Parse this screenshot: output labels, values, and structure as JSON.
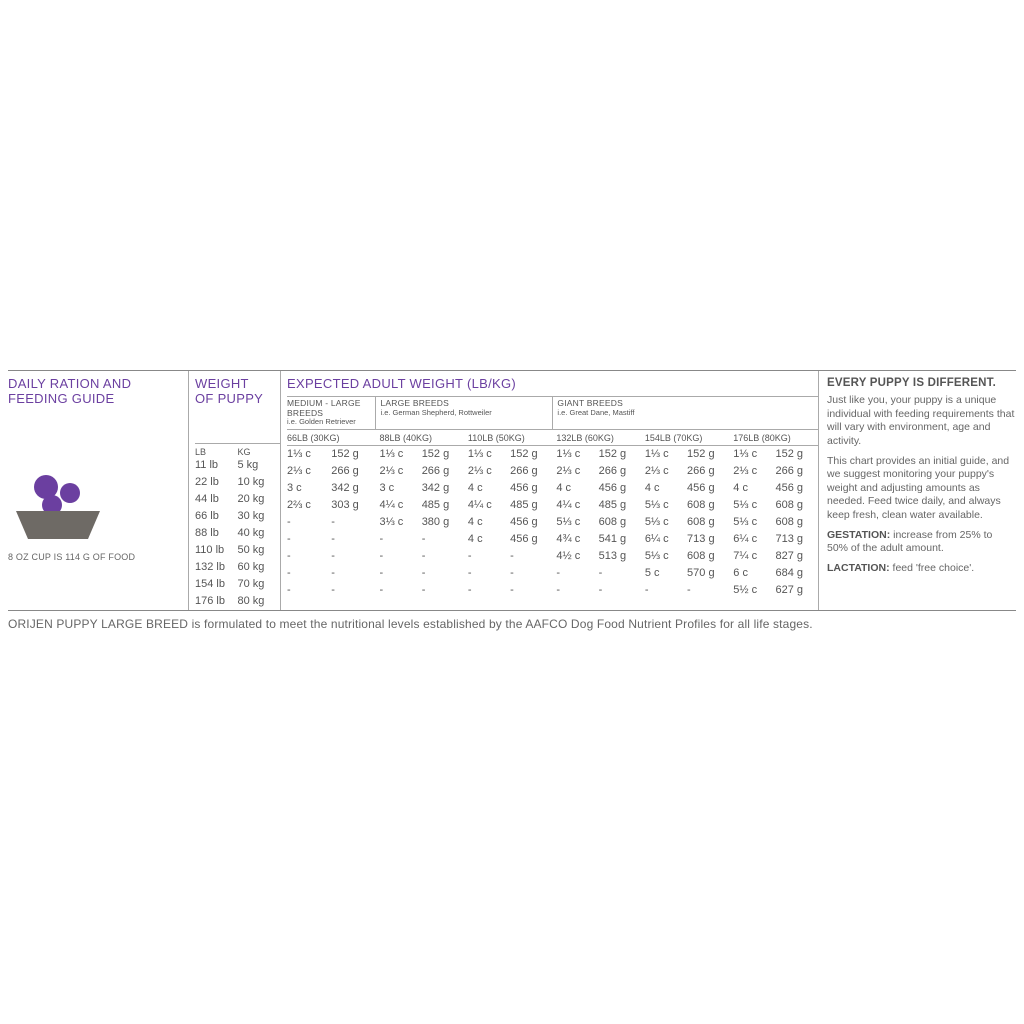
{
  "colors": {
    "purple": "#6b3fa0",
    "bowl": "#6e6a65",
    "text": "#666666",
    "rule": "#888888"
  },
  "left": {
    "title_l1": "DAILY RATION AND",
    "title_l2": "FEEDING GUIDE",
    "caption": "8 OZ CUP IS 114 G OF FOOD"
  },
  "weight": {
    "title_l1": "WEIGHT",
    "title_l2": "OF PUPPY",
    "h_lb": "LB",
    "h_kg": "KG",
    "rows": [
      {
        "lb": "11 lb",
        "kg": "5 kg"
      },
      {
        "lb": "22 lb",
        "kg": "10 kg"
      },
      {
        "lb": "44 lb",
        "kg": "20 kg"
      },
      {
        "lb": "66 lb",
        "kg": "30 kg"
      },
      {
        "lb": "88 lb",
        "kg": "40 kg"
      },
      {
        "lb": "110 lb",
        "kg": "50 kg"
      },
      {
        "lb": "132 lb",
        "kg": "60 kg"
      },
      {
        "lb": "154 lb",
        "kg": "70 kg"
      },
      {
        "lb": "176 lb",
        "kg": "80 kg"
      }
    ]
  },
  "table": {
    "title": "EXPECTED ADULT WEIGHT (LB/KG)",
    "breeds": [
      {
        "l1": "MEDIUM - LARGE BREEDS",
        "l2": "i.e. Golden Retriever"
      },
      {
        "l1": "LARGE BREEDS",
        "l2": "i.e. German Shepherd, Rottweiler"
      },
      {
        "l1": "GIANT BREEDS",
        "l2": "i.e. Great Dane, Mastiff"
      }
    ],
    "colheads": [
      "66LB (30KG)",
      "88LB (40KG)",
      "110LB (50KG)",
      "132LB (60KG)",
      "154LB (70KG)",
      "176LB (80KG)"
    ],
    "rows": [
      [
        [
          "1⅓ c",
          "152 g"
        ],
        [
          "1⅓ c",
          "152 g"
        ],
        [
          "1⅓ c",
          "152 g"
        ],
        [
          "1⅓ c",
          "152 g"
        ],
        [
          "1⅓ c",
          "152 g"
        ],
        [
          "1⅓ c",
          "152 g"
        ]
      ],
      [
        [
          "2⅓ c",
          "266 g"
        ],
        [
          "2⅓ c",
          "266 g"
        ],
        [
          "2⅓ c",
          "266 g"
        ],
        [
          "2⅓ c",
          "266 g"
        ],
        [
          "2⅓ c",
          "266 g"
        ],
        [
          "2⅓ c",
          "266 g"
        ]
      ],
      [
        [
          "3 c",
          "342 g"
        ],
        [
          "3 c",
          "342 g"
        ],
        [
          "4 c",
          "456 g"
        ],
        [
          "4 c",
          "456 g"
        ],
        [
          "4 c",
          "456 g"
        ],
        [
          "4 c",
          "456 g"
        ]
      ],
      [
        [
          "2⅔ c",
          "303 g"
        ],
        [
          "4¼ c",
          "485 g"
        ],
        [
          "4¼ c",
          "485 g"
        ],
        [
          "4¼ c",
          "485 g"
        ],
        [
          "5⅓ c",
          "608 g"
        ],
        [
          "5⅓ c",
          "608 g"
        ]
      ],
      [
        [
          "-",
          "-"
        ],
        [
          "3⅓ c",
          "380 g"
        ],
        [
          "4 c",
          "456 g"
        ],
        [
          "5⅓ c",
          "608 g"
        ],
        [
          "5⅓ c",
          "608 g"
        ],
        [
          "5⅓ c",
          "608 g"
        ]
      ],
      [
        [
          "-",
          "-"
        ],
        [
          "-",
          "-"
        ],
        [
          "4 c",
          "456 g"
        ],
        [
          "4¾ c",
          "541 g"
        ],
        [
          "6¼ c",
          "713 g"
        ],
        [
          "6¼ c",
          "713 g"
        ]
      ],
      [
        [
          "-",
          "-"
        ],
        [
          "-",
          "-"
        ],
        [
          "-",
          "-"
        ],
        [
          "4½ c",
          "513 g"
        ],
        [
          "5⅓ c",
          "608 g"
        ],
        [
          "7¼ c",
          "827 g"
        ]
      ],
      [
        [
          "-",
          "-"
        ],
        [
          "-",
          "-"
        ],
        [
          "-",
          "-"
        ],
        [
          "-",
          "-"
        ],
        [
          "5 c",
          "570 g"
        ],
        [
          "6 c",
          "684 g"
        ]
      ],
      [
        [
          "-",
          "-"
        ],
        [
          "-",
          "-"
        ],
        [
          "-",
          "-"
        ],
        [
          "-",
          "-"
        ],
        [
          "-",
          "-"
        ],
        [
          "5½ c",
          "627 g"
        ]
      ]
    ]
  },
  "right": {
    "head": "EVERY PUPPY IS DIFFERENT.",
    "p1": "Just like you, your puppy is a unique individual with feeding requirements that will vary with environment, age and activity.",
    "p2": "This chart provides an initial guide, and we suggest monitoring your puppy's weight and adjusting amounts as needed. Feed twice daily, and always keep fresh, clean water available.",
    "p3a": "GESTATION:",
    "p3b": " increase from 25% to 50% of the adult amount.",
    "p4a": "LACTATION:",
    "p4b": " feed 'free choice'."
  },
  "footer": "ORIJEN PUPPY LARGE BREED is formulated to meet the nutritional levels established by the AAFCO Dog Food Nutrient Profiles for all life stages."
}
